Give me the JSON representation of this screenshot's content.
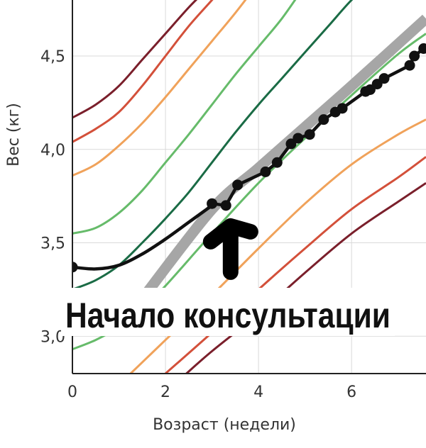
{
  "chart_data": {
    "type": "line",
    "title": "",
    "xlabel": "Возраст (недели)",
    "ylabel": "Вес (кг)",
    "xlim": [
      0,
      7.6
    ],
    "ylim": [
      2.8,
      4.8
    ],
    "x_ticks": [
      {
        "value": 0,
        "label": "0"
      },
      {
        "value": 2,
        "label": "2"
      },
      {
        "value": 4,
        "label": "4"
      },
      {
        "value": 6,
        "label": "6"
      }
    ],
    "y_ticks": [
      {
        "value": 3.0,
        "label": "3,0"
      },
      {
        "value": 3.5,
        "label": "3,5"
      },
      {
        "value": 4.0,
        "label": "4,0"
      },
      {
        "value": 4.5,
        "label": "4,5"
      }
    ],
    "grid": true,
    "reference_band": {
      "color": "#a6a6a6",
      "points": [
        [
          1.5,
          3.2
        ],
        [
          3.0,
          3.68
        ],
        [
          4.0,
          3.9
        ],
        [
          5.0,
          4.12
        ],
        [
          6.0,
          4.34
        ],
        [
          7.6,
          4.7
        ]
      ]
    },
    "percentile_curves": [
      {
        "color": "#7a1f2b",
        "points": [
          [
            0,
            4.17
          ],
          [
            0.5,
            4.24
          ],
          [
            1,
            4.34
          ],
          [
            1.5,
            4.48
          ],
          [
            2,
            4.62
          ],
          [
            2.5,
            4.76
          ],
          [
            2.9,
            4.86
          ]
        ]
      },
      {
        "color": "#d3503a",
        "points": [
          [
            0,
            4.04
          ],
          [
            0.5,
            4.11
          ],
          [
            1,
            4.2
          ],
          [
            1.5,
            4.34
          ],
          [
            2,
            4.5
          ],
          [
            2.5,
            4.66
          ],
          [
            3,
            4.8
          ],
          [
            3.2,
            4.86
          ]
        ]
      },
      {
        "color": "#f0a25a",
        "points": [
          [
            0,
            3.86
          ],
          [
            0.5,
            3.92
          ],
          [
            1,
            4.02
          ],
          [
            1.5,
            4.14
          ],
          [
            2,
            4.28
          ],
          [
            2.5,
            4.43
          ],
          [
            3,
            4.58
          ],
          [
            3.5,
            4.73
          ],
          [
            3.9,
            4.86
          ]
        ]
      },
      {
        "color": "#66bb6a",
        "points": [
          [
            0,
            3.55
          ],
          [
            0.5,
            3.58
          ],
          [
            1,
            3.66
          ],
          [
            1.5,
            3.78
          ],
          [
            2,
            3.93
          ],
          [
            2.5,
            4.08
          ],
          [
            3,
            4.24
          ],
          [
            3.5,
            4.4
          ],
          [
            4,
            4.55
          ],
          [
            4.5,
            4.7
          ],
          [
            4.95,
            4.86
          ]
        ]
      },
      {
        "color": "#1a6b45",
        "points": [
          [
            0,
            3.25
          ],
          [
            0.5,
            3.3
          ],
          [
            1,
            3.38
          ],
          [
            1.5,
            3.5
          ],
          [
            2,
            3.63
          ],
          [
            2.5,
            3.77
          ],
          [
            3,
            3.93
          ],
          [
            3.5,
            4.09
          ],
          [
            4,
            4.24
          ],
          [
            4.5,
            4.38
          ],
          [
            5,
            4.52
          ],
          [
            5.5,
            4.66
          ],
          [
            6,
            4.8
          ],
          [
            6.3,
            4.86
          ]
        ]
      },
      {
        "color": "#66bb6a",
        "points": [
          [
            0,
            2.93
          ],
          [
            0.5,
            2.98
          ],
          [
            1,
            3.05
          ],
          [
            1.5,
            3.15
          ],
          [
            2,
            3.27
          ],
          [
            3,
            3.55
          ],
          [
            4,
            3.82
          ],
          [
            5,
            4.06
          ],
          [
            6,
            4.29
          ],
          [
            7,
            4.51
          ],
          [
            7.6,
            4.62
          ]
        ]
      },
      {
        "color": "#f0a25a",
        "points": [
          [
            1.25,
            2.8
          ],
          [
            2,
            2.98
          ],
          [
            3,
            3.22
          ],
          [
            4,
            3.47
          ],
          [
            5,
            3.71
          ],
          [
            6,
            3.92
          ],
          [
            7,
            4.08
          ],
          [
            7.6,
            4.16
          ]
        ]
      },
      {
        "color": "#d3503a",
        "points": [
          [
            2,
            2.8
          ],
          [
            3,
            3.02
          ],
          [
            4,
            3.25
          ],
          [
            5,
            3.47
          ],
          [
            6,
            3.68
          ],
          [
            7,
            3.85
          ],
          [
            7.6,
            3.96
          ]
        ]
      },
      {
        "color": "#7a1f2b",
        "points": [
          [
            2.45,
            2.8
          ],
          [
            3,
            2.92
          ],
          [
            4,
            3.12
          ],
          [
            5,
            3.34
          ],
          [
            6,
            3.55
          ],
          [
            7,
            3.72
          ],
          [
            7.6,
            3.82
          ]
        ]
      }
    ],
    "series": [
      {
        "color": "#111111",
        "start_curve": [
          [
            0,
            3.37
          ],
          [
            0.5,
            3.36
          ],
          [
            1,
            3.38
          ],
          [
            1.5,
            3.44
          ],
          [
            2,
            3.52
          ],
          [
            2.5,
            3.61
          ],
          [
            3,
            3.7
          ]
        ],
        "points": [
          {
            "x": 0,
            "y": 3.37
          },
          {
            "x": 3.0,
            "y": 3.71
          },
          {
            "x": 3.3,
            "y": 3.7
          },
          {
            "x": 3.55,
            "y": 3.81
          },
          {
            "x": 4.15,
            "y": 3.88
          },
          {
            "x": 4.4,
            "y": 3.93
          },
          {
            "x": 4.7,
            "y": 4.03
          },
          {
            "x": 4.85,
            "y": 4.06
          },
          {
            "x": 5.1,
            "y": 4.08
          },
          {
            "x": 5.4,
            "y": 4.16
          },
          {
            "x": 5.65,
            "y": 4.2
          },
          {
            "x": 5.8,
            "y": 4.22
          },
          {
            "x": 6.3,
            "y": 4.31
          },
          {
            "x": 6.4,
            "y": 4.32
          },
          {
            "x": 6.55,
            "y": 4.35
          },
          {
            "x": 6.7,
            "y": 4.38
          },
          {
            "x": 7.25,
            "y": 4.45
          },
          {
            "x": 7.35,
            "y": 4.5
          },
          {
            "x": 7.55,
            "y": 4.54
          }
        ]
      }
    ],
    "annotation": {
      "text": "Начало консультации",
      "arrow_at": {
        "x": 3.4,
        "y": 3.62
      }
    }
  }
}
